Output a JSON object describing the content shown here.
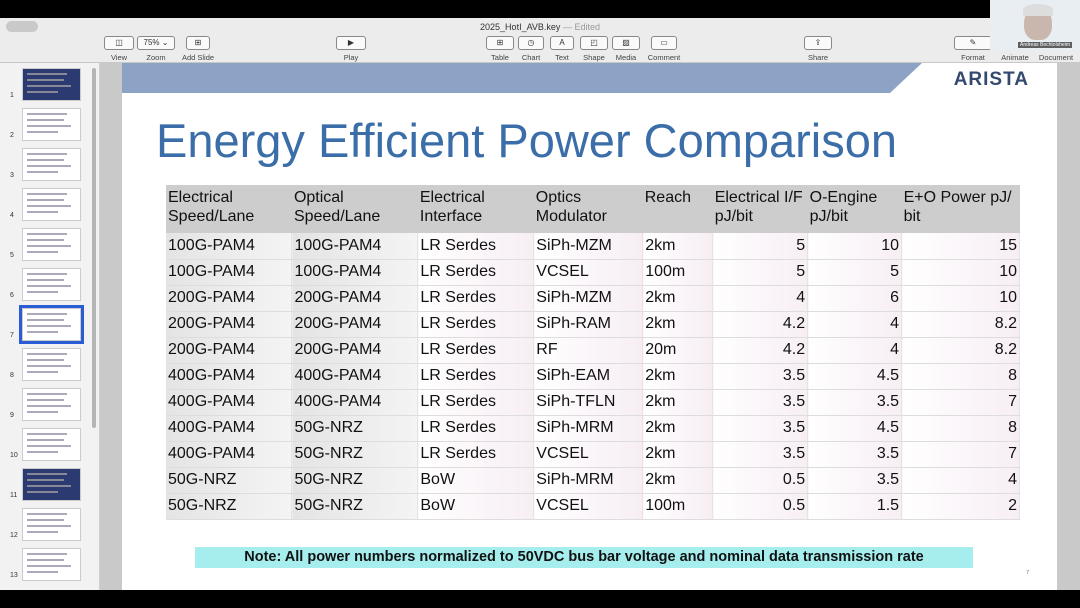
{
  "app": {
    "doc_title": "2025_HotI_AVB.key",
    "edited": "— Edited"
  },
  "toolbar": {
    "view": "View",
    "zoom": "Zoom",
    "zoom_value": "75% ⌄",
    "add_slide": "Add Slide",
    "play": "Play",
    "table": "Table",
    "chart": "Chart",
    "text": "Text",
    "shape": "Shape",
    "media": "Media",
    "comment": "Comment",
    "share": "Share",
    "format": "Format",
    "animate": "Animate",
    "document": "Document"
  },
  "sidebar": {
    "slides": [
      "1",
      "2",
      "3",
      "4",
      "5",
      "6",
      "7",
      "8",
      "9",
      "10",
      "11",
      "12",
      "13"
    ],
    "selected": "7"
  },
  "slide": {
    "logo": "ARISTA",
    "title": "Energy Efficient Power Comparison",
    "headers": [
      "Electrical Speed/Lane",
      "Optical Speed/Lane",
      "Electrical Interface",
      "Optics Modulator",
      "Reach",
      "Electrical I/F pJ/bit",
      "O-Engine pJ/bit",
      "E+O Power pJ/ bit"
    ],
    "rows": [
      [
        "100G-PAM4",
        "100G-PAM4",
        "LR Serdes",
        "SiPh-MZM",
        "2km",
        "5",
        "10",
        "15"
      ],
      [
        "100G-PAM4",
        "100G-PAM4",
        "LR Serdes",
        "VCSEL",
        "100m",
        "5",
        "5",
        "10"
      ],
      [
        "200G-PAM4",
        "200G-PAM4",
        "LR Serdes",
        "SiPh-MZM",
        "2km",
        "4",
        "6",
        "10"
      ],
      [
        "200G-PAM4",
        "200G-PAM4",
        "LR Serdes",
        "SiPh-RAM",
        "2km",
        "4.2",
        "4",
        "8.2"
      ],
      [
        "200G-PAM4",
        "200G-PAM4",
        "LR Serdes",
        "RF",
        "20m",
        "4.2",
        "4",
        "8.2"
      ],
      [
        "400G-PAM4",
        "400G-PAM4",
        "LR Serdes",
        "SiPh-EAM",
        "2km",
        "3.5",
        "4.5",
        "8"
      ],
      [
        "400G-PAM4",
        "400G-PAM4",
        "LR Serdes",
        "SiPh-TFLN",
        "2km",
        "3.5",
        "3.5",
        "7"
      ],
      [
        "400G-PAM4",
        "50G-NRZ",
        "LR Serdes",
        "SiPh-MRM",
        "2km",
        "3.5",
        "4.5",
        "8"
      ],
      [
        "400G-PAM4",
        "50G-NRZ",
        "LR Serdes",
        "VCSEL",
        "2km",
        "3.5",
        "3.5",
        "7"
      ],
      [
        "50G-NRZ",
        "50G-NRZ",
        "BoW",
        "SiPh-MRM",
        "2km",
        "0.5",
        "3.5",
        "4"
      ],
      [
        "50G-NRZ",
        "50G-NRZ",
        "BoW",
        "VCSEL",
        "100m",
        "0.5",
        "1.5",
        "2"
      ]
    ],
    "note": "Note: All power numbers normalized to 50VDC bus bar voltage and nominal data  transmission rate",
    "page_number": "7"
  },
  "video": {
    "participant": "Andreas Bechtolsheim"
  }
}
